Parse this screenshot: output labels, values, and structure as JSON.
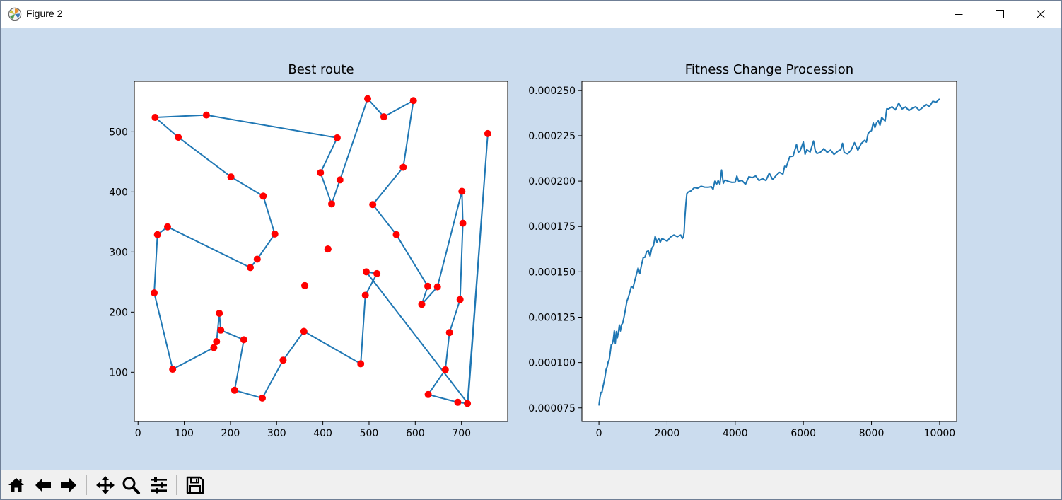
{
  "window": {
    "title": "Figure 2",
    "controls": [
      "minimize-icon",
      "maximize-icon",
      "close-icon"
    ],
    "app_icon": "matplotlib-logo"
  },
  "figure": {
    "background_color": "#cbdcee",
    "line_color": "#1f77b4",
    "marker_color": "#ff0000"
  },
  "toolbar": {
    "buttons": [
      "home-icon",
      "back-arrow-icon",
      "forward-arrow-icon",
      "pan-icon",
      "zoom-icon",
      "configure-subplots-icon",
      "save-icon"
    ]
  },
  "chart_data": [
    {
      "type": "scatter",
      "title": "Best route",
      "xlabel": "",
      "ylabel": "",
      "xlim": [
        -8,
        800
      ],
      "ylim": [
        18,
        584
      ],
      "xticks": [
        0,
        100,
        200,
        300,
        400,
        500,
        600,
        700
      ],
      "yticks": [
        100,
        200,
        300,
        400,
        500
      ],
      "grid": false,
      "series": [
        {
          "kind": "route-line",
          "closed": true,
          "points": [
            [
              37,
              524
            ],
            [
              148,
              528
            ],
            [
              431,
              490
            ],
            [
              395,
              432
            ],
            [
              419,
              380
            ],
            [
              437,
              420
            ],
            [
              497,
              555
            ],
            [
              532,
              525
            ],
            [
              596,
              552
            ],
            [
              574,
              441
            ],
            [
              508,
              379
            ],
            [
              559,
              329
            ],
            [
              627,
              243
            ],
            [
              614,
              213
            ],
            [
              648,
              242
            ],
            [
              701,
              401
            ],
            [
              703,
              348
            ],
            [
              697,
              221
            ],
            [
              674,
              166
            ],
            [
              665,
              104
            ],
            [
              628,
              63
            ],
            [
              692,
              50
            ],
            [
              713,
              48
            ],
            [
              757,
              497
            ],
            [
              714,
              48
            ],
            [
              494,
              267
            ],
            [
              517,
              264
            ],
            [
              492,
              228
            ],
            [
              482,
              114
            ],
            [
              359,
              168
            ],
            [
              314,
              120
            ],
            [
              269,
              57
            ],
            [
              209,
              70
            ],
            [
              229,
              154
            ],
            [
              179,
              170
            ],
            [
              176,
              198
            ],
            [
              170,
              151
            ],
            [
              164,
              141
            ],
            [
              75,
              105
            ],
            [
              35,
              232
            ],
            [
              42,
              329
            ],
            [
              64,
              342
            ],
            [
              243,
              274
            ],
            [
              258,
              288
            ],
            [
              296,
              330
            ],
            [
              271,
              393
            ],
            [
              201,
              425
            ],
            [
              87,
              491
            ],
            [
              37,
              524
            ]
          ]
        },
        {
          "kind": "city-markers",
          "points": [
            [
              37,
              524
            ],
            [
              148,
              528
            ],
            [
              87,
              491
            ],
            [
              201,
              425
            ],
            [
              271,
              393
            ],
            [
              296,
              330
            ],
            [
              258,
              288
            ],
            [
              243,
              274
            ],
            [
              64,
              342
            ],
            [
              42,
              329
            ],
            [
              35,
              232
            ],
            [
              75,
              105
            ],
            [
              164,
              141
            ],
            [
              170,
              151
            ],
            [
              176,
              198
            ],
            [
              179,
              170
            ],
            [
              229,
              154
            ],
            [
              209,
              70
            ],
            [
              269,
              57
            ],
            [
              314,
              120
            ],
            [
              359,
              168
            ],
            [
              361,
              244
            ],
            [
              411,
              305
            ],
            [
              395,
              432
            ],
            [
              419,
              380
            ],
            [
              437,
              420
            ],
            [
              431,
              490
            ],
            [
              497,
              555
            ],
            [
              532,
              525
            ],
            [
              596,
              552
            ],
            [
              574,
              441
            ],
            [
              508,
              379
            ],
            [
              559,
              329
            ],
            [
              627,
              243
            ],
            [
              614,
              213
            ],
            [
              648,
              242
            ],
            [
              701,
              401
            ],
            [
              703,
              348
            ],
            [
              697,
              221
            ],
            [
              674,
              166
            ],
            [
              665,
              104
            ],
            [
              628,
              63
            ],
            [
              692,
              50
            ],
            [
              713,
              48
            ],
            [
              757,
              497
            ],
            [
              494,
              267
            ],
            [
              517,
              264
            ],
            [
              492,
              228
            ],
            [
              482,
              114
            ],
            [
              411,
              305
            ],
            [
              361,
              244
            ]
          ]
        }
      ]
    },
    {
      "type": "line",
      "title": "Fitness Change Procession",
      "xlabel": "",
      "ylabel": "",
      "xlim": [
        -500,
        10500
      ],
      "ylim": [
        6.75e-05,
        0.000255
      ],
      "xticks": [
        0,
        2000,
        4000,
        6000,
        8000,
        10000
      ],
      "xtick_labels": [
        "0",
        "2000",
        "4000",
        "6000",
        "8000",
        "10000"
      ],
      "yticks": [
        7.5e-05,
        0.0001,
        0.000125,
        0.00015,
        0.000175,
        0.0002,
        0.000225,
        0.00025
      ],
      "ytick_labels": [
        "0.000075",
        "0.000100",
        "0.000125",
        "0.000150",
        "0.000175",
        "0.000200",
        "0.000225",
        "0.000250"
      ],
      "grid": false,
      "series": [
        {
          "points": [
            [
              0,
              7.63e-05
            ],
            [
              30,
              8.08e-05
            ],
            [
              60,
              8.36e-05
            ],
            [
              90,
              8.37e-05
            ],
            [
              120,
              8.68e-05
            ],
            [
              150,
              8.93e-05
            ],
            [
              180,
              9.24e-05
            ],
            [
              210,
              9.62e-05
            ],
            [
              240,
              9.76e-05
            ],
            [
              270,
              0.0001003
            ],
            [
              300,
              0.0001015
            ],
            [
              330,
              0.0001054
            ],
            [
              360,
              0.0001097
            ],
            [
              390,
              0.0001102
            ],
            [
              420,
              0.0001125
            ],
            [
              450,
              0.0001175
            ],
            [
              480,
              0.0001106
            ],
            [
              510,
              0.0001171
            ],
            [
              540,
              0.0001136
            ],
            [
              570,
              0.0001168
            ],
            [
              600,
              0.0001207
            ],
            [
              630,
              0.0001174
            ],
            [
              660,
              0.0001208
            ],
            [
              700,
              0.0001219
            ],
            [
              740,
              0.0001254
            ],
            [
              780,
              0.0001296
            ],
            [
              820,
              0.0001338
            ],
            [
              860,
              0.0001357
            ],
            [
              900,
              0.0001384
            ],
            [
              950,
              0.000142
            ],
            [
              1000,
              0.0001412
            ],
            [
              1050,
              0.000145
            ],
            [
              1100,
              0.0001487
            ],
            [
              1150,
              0.0001521
            ],
            [
              1200,
              0.0001491
            ],
            [
              1250,
              0.0001539
            ],
            [
              1300,
              0.0001578
            ],
            [
              1350,
              0.000158
            ],
            [
              1400,
              0.0001611
            ],
            [
              1450,
              0.0001616
            ],
            [
              1500,
              0.0001586
            ],
            [
              1550,
              0.0001631
            ],
            [
              1600,
              0.0001644
            ],
            [
              1650,
              0.0001696
            ],
            [
              1700,
              0.0001664
            ],
            [
              1750,
              0.0001685
            ],
            [
              1800,
              0.0001663
            ],
            [
              1850,
              0.0001684
            ],
            [
              1900,
              0.0001679
            ],
            [
              2000,
              0.0001669
            ],
            [
              2100,
              0.0001692
            ],
            [
              2200,
              0.0001703
            ],
            [
              2300,
              0.0001693
            ],
            [
              2400,
              0.0001703
            ],
            [
              2450,
              0.0001684
            ],
            [
              2480,
              0.0001695
            ],
            [
              2500,
              0.0001717
            ],
            [
              2520,
              0.0001793
            ],
            [
              2550,
              0.0001874
            ],
            [
              2580,
              0.0001931
            ],
            [
              2620,
              0.000194
            ],
            [
              2700,
              0.0001946
            ],
            [
              2800,
              0.0001964
            ],
            [
              2900,
              0.0001961
            ],
            [
              3000,
              0.0001972
            ],
            [
              3100,
              0.0001967
            ],
            [
              3200,
              0.0001966
            ],
            [
              3300,
              0.0001969
            ],
            [
              3350,
              0.0001954
            ],
            [
              3400,
              0.0001999
            ],
            [
              3450,
              0.0001981
            ],
            [
              3500,
              0.0002003
            ],
            [
              3550,
              0.0001983
            ],
            [
              3600,
              0.0002061
            ],
            [
              3650,
              0.0001988
            ],
            [
              3700,
              0.0002006
            ],
            [
              3800,
              0.0001998
            ],
            [
              3900,
              0.0001993
            ],
            [
              4000,
              0.0001994
            ],
            [
              4050,
              0.0002028
            ],
            [
              4100,
              0.0002
            ],
            [
              4200,
              0.0002003
            ],
            [
              4300,
              0.0001982
            ],
            [
              4400,
              0.0002024
            ],
            [
              4500,
              0.0002019
            ],
            [
              4600,
              0.0002029
            ],
            [
              4700,
              0.0002003
            ],
            [
              4800,
              0.0002014
            ],
            [
              4900,
              0.0002003
            ],
            [
              5000,
              0.0002044
            ],
            [
              5100,
              0.0002008
            ],
            [
              5200,
              0.0002031
            ],
            [
              5300,
              0.0002048
            ],
            [
              5400,
              0.0002038
            ],
            [
              5450,
              0.0002082
            ],
            [
              5500,
              0.0002078
            ],
            [
              5550,
              0.0002107
            ],
            [
              5600,
              0.0002134
            ],
            [
              5700,
              0.0002138
            ],
            [
              5800,
              0.0002202
            ],
            [
              5850,
              0.0002159
            ],
            [
              5900,
              0.0002164
            ],
            [
              6000,
              0.0002216
            ],
            [
              6050,
              0.0002148
            ],
            [
              6100,
              0.0002173
            ],
            [
              6200,
              0.000216
            ],
            [
              6300,
              0.0002221
            ],
            [
              6350,
              0.0002169
            ],
            [
              6400,
              0.0002152
            ],
            [
              6500,
              0.0002159
            ],
            [
              6600,
              0.0002179
            ],
            [
              6700,
              0.0002158
            ],
            [
              6800,
              0.0002171
            ],
            [
              6900,
              0.0002147
            ],
            [
              7000,
              0.0002163
            ],
            [
              7100,
              0.0002174
            ],
            [
              7150,
              0.0002208
            ],
            [
              7200,
              0.0002157
            ],
            [
              7300,
              0.000215
            ],
            [
              7400,
              0.000217
            ],
            [
              7500,
              0.0002212
            ],
            [
              7600,
              0.000217
            ],
            [
              7700,
              0.0002207
            ],
            [
              7800,
              0.0002225
            ],
            [
              7850,
              0.0002215
            ],
            [
              7900,
              0.0002261
            ],
            [
              7950,
              0.0002274
            ],
            [
              8000,
              0.0002278
            ],
            [
              8050,
              0.0002321
            ],
            [
              8100,
              0.0002295
            ],
            [
              8150,
              0.0002322
            ],
            [
              8200,
              0.0002332
            ],
            [
              8250,
              0.0002308
            ],
            [
              8300,
              0.0002351
            ],
            [
              8400,
              0.0002331
            ],
            [
              8450,
              0.0002399
            ],
            [
              8500,
              0.0002397
            ],
            [
              8600,
              0.000241
            ],
            [
              8700,
              0.0002393
            ],
            [
              8800,
              0.000243
            ],
            [
              8900,
              0.0002398
            ],
            [
              9000,
              0.0002409
            ],
            [
              9100,
              0.0002389
            ],
            [
              9200,
              0.0002402
            ],
            [
              9300,
              0.000241
            ],
            [
              9400,
              0.000239
            ],
            [
              9500,
              0.0002405
            ],
            [
              9600,
              0.0002423
            ],
            [
              9700,
              0.000241
            ],
            [
              9800,
              0.000244
            ],
            [
              9900,
              0.0002435
            ],
            [
              10000,
              0.0002453
            ]
          ]
        }
      ]
    }
  ]
}
